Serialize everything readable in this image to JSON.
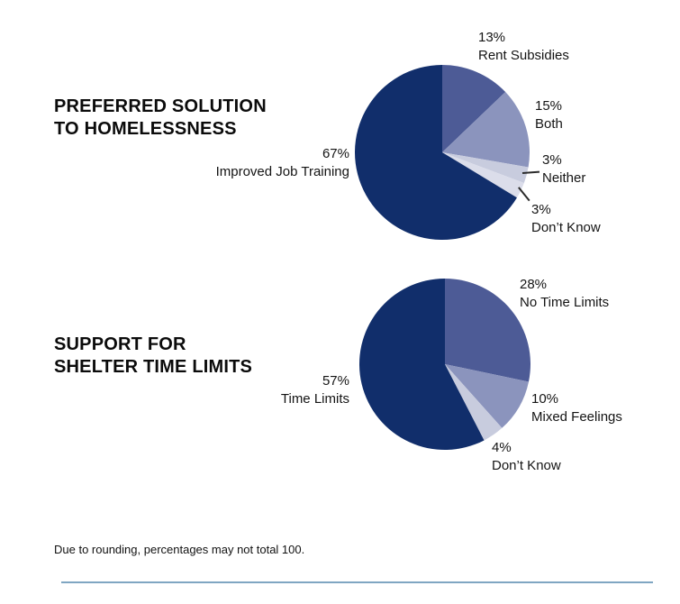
{
  "page": {
    "footnote": "Due to rounding, percentages may not total 100.",
    "divider_color": "#7FA6C2",
    "background": "#FFFFFF"
  },
  "chart_data": [
    {
      "type": "pie",
      "title": "PREFERRED SOLUTION TO HOMELESSNESS",
      "title_line1": "PREFERRED SOLUTION",
      "title_line2": "TO HOMELESSNESS",
      "start_angle": "12 o'clock",
      "direction": "clockwise",
      "slices": [
        {
          "label": "Rent Subsidies",
          "pct": 13,
          "pct_label": "13%",
          "color": "#4D5B96"
        },
        {
          "label": "Both",
          "pct": 15,
          "pct_label": "15%",
          "color": "#8B94BD"
        },
        {
          "label": "Neither",
          "pct": 3,
          "pct_label": "3%",
          "color": "#C8CCDE"
        },
        {
          "label": "Don’t Know",
          "pct": 3,
          "pct_label": "3%",
          "color": "#DBDDEA"
        },
        {
          "label": "Improved Job Training",
          "pct": 67,
          "pct_label": "67%",
          "color": "#112E6B"
        }
      ]
    },
    {
      "type": "pie",
      "title": "SUPPORT FOR SHELTER TIME LIMITS",
      "title_line1": "SUPPORT FOR",
      "title_line2": "SHELTER TIME LIMITS",
      "start_angle": "12 o'clock",
      "direction": "clockwise",
      "slices": [
        {
          "label": "No Time Limits",
          "pct": 28,
          "pct_label": "28%",
          "color": "#4D5B96"
        },
        {
          "label": "Mixed Feelings",
          "pct": 10,
          "pct_label": "10%",
          "color": "#8B94BD"
        },
        {
          "label": "Don’t Know",
          "pct": 4,
          "pct_label": "4%",
          "color": "#C8CCDE"
        },
        {
          "label": "Time Limits",
          "pct": 57,
          "pct_label": "57%",
          "color": "#112E6B"
        }
      ]
    }
  ]
}
